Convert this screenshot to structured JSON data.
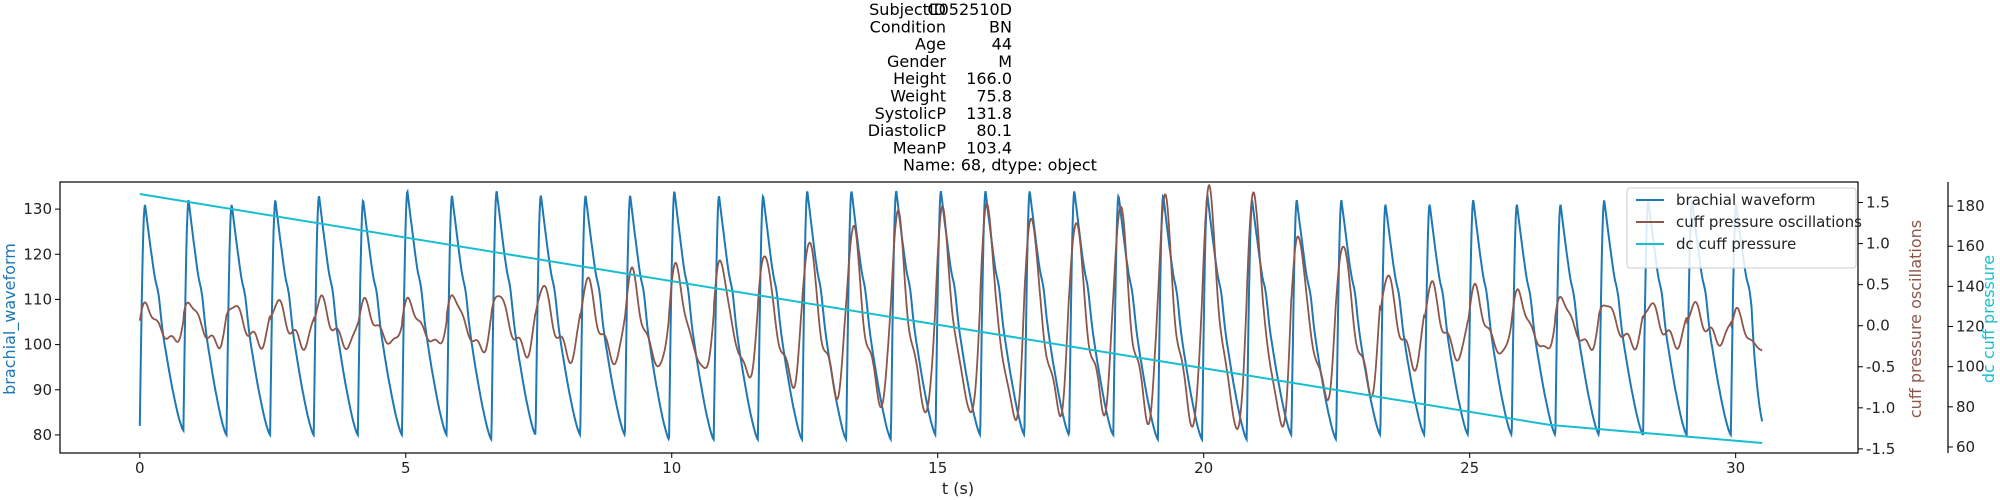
{
  "title_lines": [
    {
      "key": "SubjectID",
      "value": "C052510D"
    },
    {
      "key": "Condition",
      "value": "BN"
    },
    {
      "key": "Age",
      "value": "44"
    },
    {
      "key": "Gender",
      "value": "M"
    },
    {
      "key": "Height",
      "value": "166.0"
    },
    {
      "key": "Weight",
      "value": "75.8"
    },
    {
      "key": "SystolicP",
      "value": "131.8"
    },
    {
      "key": "DiastolicP",
      "value": "80.1"
    },
    {
      "key": "MeanP",
      "value": "103.4"
    }
  ],
  "title_footer": "Name: 68, dtype: object",
  "chart_data": {
    "type": "line",
    "xlabel": "t (s)",
    "xlim": [
      -1.5,
      32.3
    ],
    "xticks": [
      0,
      5,
      10,
      15,
      20,
      25,
      30
    ],
    "grid": false,
    "legend_position": "top-right",
    "axes": {
      "left": {
        "label": "brachial_waveform",
        "color": "#1f77b4",
        "ylim": [
          76,
          136
        ],
        "ticks": [
          80,
          90,
          100,
          110,
          120,
          130
        ]
      },
      "right1": {
        "label": "cuff pressure oscillations",
        "color": "#8c564b",
        "ylim": [
          -1.55,
          1.75
        ],
        "ticks": [
          -1.5,
          -1.0,
          -0.5,
          0.0,
          0.5,
          1.0,
          1.5
        ]
      },
      "right2": {
        "label": "dc cuff pressure",
        "color": "#17becf",
        "ylim": [
          57,
          192
        ],
        "ticks": [
          60,
          80,
          100,
          120,
          140,
          160,
          180
        ]
      }
    },
    "series": [
      {
        "name": "brachial waveform",
        "axis": "left",
        "color": "#1f77b4",
        "t_start": 0.0,
        "t_end": 30.5,
        "beats_t": [
          0.0,
          0.82,
          1.63,
          2.45,
          3.27,
          4.1,
          4.93,
          5.77,
          6.61,
          7.44,
          8.28,
          9.12,
          9.95,
          10.79,
          11.62,
          12.45,
          13.28,
          14.12,
          14.96,
          15.8,
          16.63,
          17.47,
          18.3,
          19.14,
          19.97,
          20.81,
          21.65,
          22.49,
          23.32,
          24.15,
          24.97,
          25.79,
          26.61,
          27.43,
          28.26,
          29.08,
          29.91
        ],
        "beat_peak": [
          131,
          132,
          131,
          132,
          133,
          132,
          134,
          133,
          134,
          133,
          133,
          133,
          134,
          133,
          133,
          134,
          134,
          134,
          134,
          134,
          134,
          134,
          133,
          133,
          133,
          132,
          132,
          132,
          131,
          131,
          132,
          131,
          131,
          132,
          132,
          132,
          131
        ],
        "beat_min": [
          81,
          80,
          80,
          80,
          80,
          80,
          80,
          79,
          80,
          80,
          80,
          79,
          79,
          79,
          79,
          79,
          79,
          80,
          80,
          80,
          80,
          80,
          79,
          79,
          79,
          80,
          79,
          80,
          80,
          80,
          80,
          80,
          80,
          80,
          80,
          80,
          82
        ],
        "first_point": 82,
        "last_point": 83
      },
      {
        "name": "cuff pressure oscillations",
        "axis": "right1",
        "color": "#8c564b",
        "beat_amp": [
          0.25,
          0.3,
          0.28,
          0.3,
          0.32,
          0.28,
          0.3,
          0.38,
          0.42,
          0.5,
          0.55,
          0.65,
          0.72,
          0.8,
          0.9,
          1.05,
          1.2,
          1.35,
          1.4,
          1.48,
          1.35,
          1.3,
          1.45,
          1.55,
          1.65,
          1.6,
          1.12,
          1.02,
          0.62,
          0.5,
          0.45,
          0.4,
          0.35,
          0.3,
          0.28,
          0.25,
          0.2
        ],
        "last_point": -0.3
      },
      {
        "name": "dc cuff pressure",
        "axis": "right2",
        "color": "#17becf",
        "x": [
          0,
          26.5,
          30.5
        ],
        "y": [
          186,
          71,
          62
        ]
      }
    ]
  }
}
